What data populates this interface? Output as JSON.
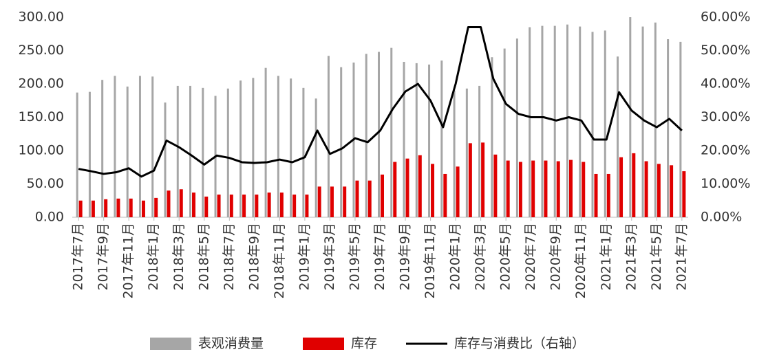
{
  "chart_data": {
    "type": "bar-line",
    "categories": [
      "2017年7月",
      null,
      "2017年9月",
      null,
      "2017年11月",
      null,
      "2018年1月",
      null,
      "2018年3月",
      null,
      "2018年5月",
      null,
      "2018年7月",
      null,
      "2018年9月",
      null,
      "2018年11月",
      null,
      "2019年1月",
      null,
      "2019年3月",
      null,
      "2019年5月",
      null,
      "2019年7月",
      null,
      "2019年9月",
      null,
      "2019年11月",
      null,
      "2020年1月",
      null,
      "2020年3月",
      null,
      "2020年5月",
      null,
      "2020年7月",
      null,
      "2020年9月",
      null,
      "2020年11月",
      null,
      "2021年1月",
      null,
      "2021年3月",
      null,
      "2021年5月",
      null,
      "2021年7月"
    ],
    "series": [
      {
        "name": "表观消费量",
        "type": "bar",
        "color": "#a6a6a6",
        "values": [
          187,
          188,
          206,
          212,
          196,
          212,
          211,
          172,
          197,
          197,
          194,
          182,
          193,
          205,
          209,
          224,
          212,
          208,
          194,
          178,
          242,
          225,
          232,
          245,
          248,
          254,
          233,
          231,
          229,
          235,
          190,
          193,
          197,
          240,
          253,
          268,
          285,
          287,
          287,
          289,
          286,
          278,
          280,
          241,
          300,
          286,
          292,
          267,
          263
        ]
      },
      {
        "name": "库存",
        "type": "bar",
        "color": "#e00000",
        "values": [
          25,
          25,
          27,
          28,
          28,
          25,
          29,
          40,
          42,
          37,
          31,
          34,
          34,
          34,
          34,
          37,
          37,
          34,
          34,
          46,
          46,
          46,
          55,
          55,
          64,
          83,
          88,
          93,
          80,
          65,
          76,
          111,
          112,
          94,
          85,
          83,
          85,
          85,
          84,
          86,
          83,
          65,
          65,
          90,
          96,
          84,
          80,
          78,
          69
        ]
      },
      {
        "name": "库存与消费比（右轴）",
        "type": "line",
        "axis": "y2",
        "color": "#000000",
        "values": [
          14.5,
          13.8,
          13,
          13.5,
          14.7,
          12.2,
          14,
          23,
          21,
          18.5,
          15.8,
          18.5,
          17.8,
          16.5,
          16.3,
          16.5,
          17.3,
          16.5,
          18,
          26,
          19,
          20.7,
          23.7,
          22.5,
          26,
          32.5,
          37.7,
          40,
          35,
          27,
          40,
          57,
          57,
          41.5,
          34,
          31,
          30,
          30,
          29,
          30,
          29,
          23.3,
          23.3,
          37.5,
          32,
          29,
          27,
          29.5,
          26
        ]
      }
    ],
    "ylim": [
      0,
      300
    ],
    "yticks": [
      {
        "value": 0,
        "label": "0.00"
      },
      {
        "value": 50,
        "label": "50.00"
      },
      {
        "value": 100,
        "label": "100.00"
      },
      {
        "value": 150,
        "label": "150.00"
      },
      {
        "value": 200,
        "label": "200.00"
      },
      {
        "value": 250,
        "label": "250.00"
      },
      {
        "value": 300,
        "label": "300.00"
      }
    ],
    "y2lim": [
      0,
      60
    ],
    "y2ticks": [
      {
        "value": 0,
        "label": "0.00%"
      },
      {
        "value": 10,
        "label": "10.00%"
      },
      {
        "value": 20,
        "label": "20.00%"
      },
      {
        "value": 30,
        "label": "30.00%"
      },
      {
        "value": 40,
        "label": "40.00%"
      },
      {
        "value": 50,
        "label": "50.00%"
      },
      {
        "value": 60,
        "label": "60.00%"
      }
    ],
    "legend": "bottom",
    "grid": false
  }
}
